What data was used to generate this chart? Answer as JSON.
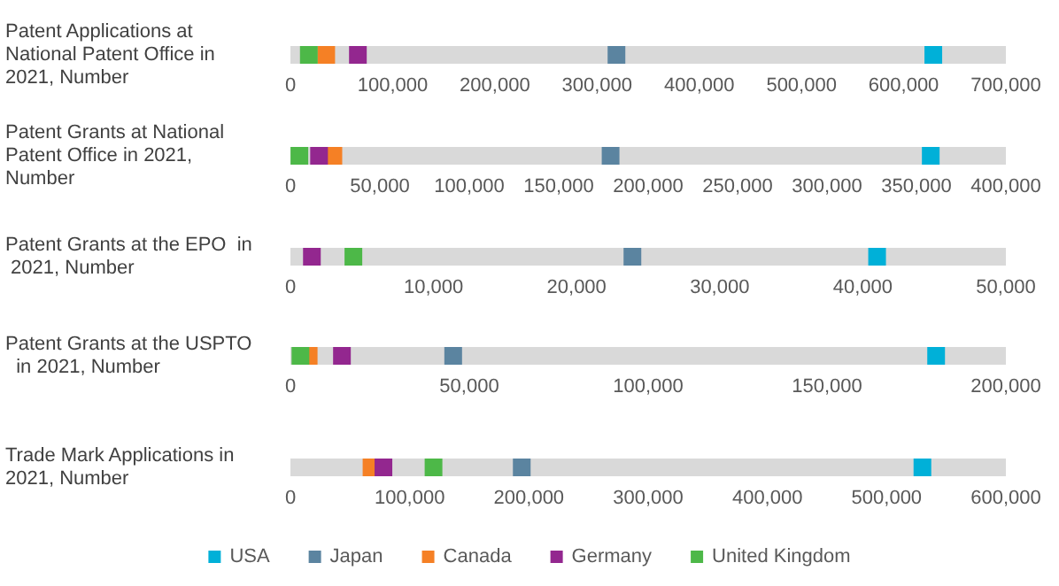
{
  "chart_data": [
    {
      "type": "scatter",
      "orientation": "horizontal",
      "categories": [
        "Patent Applications at National Patent Office in 2021, Number"
      ],
      "marker": "square",
      "grid": false,
      "legend": false,
      "xlim": [
        0,
        700000
      ],
      "xticks": [
        {
          "value": 0,
          "label": "0"
        },
        {
          "value": 100000,
          "label": "100,000"
        },
        {
          "value": 200000,
          "label": "200,000"
        },
        {
          "value": 300000,
          "label": "300,000"
        },
        {
          "value": 400000,
          "label": "400,000"
        },
        {
          "value": 500000,
          "label": "500,000"
        },
        {
          "value": 600000,
          "label": "600,000"
        },
        {
          "value": 700000,
          "label": "700,000"
        }
      ],
      "bands": [
        {
          "axis": "x",
          "from": 0,
          "to": 700000,
          "color": "#d9d9d9"
        }
      ],
      "series": [
        {
          "color": "#00b0d8",
          "values": [
            629000
          ]
        },
        {
          "color": "#5b84a0",
          "values": [
            319000
          ]
        },
        {
          "color": "#f58025",
          "values": [
            35000
          ]
        },
        {
          "color": "#93278f",
          "values": [
            66000
          ]
        },
        {
          "color": "#4db848",
          "values": [
            18000
          ]
        }
      ]
    },
    {
      "type": "scatter",
      "orientation": "horizontal",
      "categories": [
        "Patent Grants at National Patent Office in 2021, Number"
      ],
      "marker": "square",
      "grid": false,
      "legend": false,
      "xlim": [
        0,
        400000
      ],
      "xticks": [
        {
          "value": 0,
          "label": "0"
        },
        {
          "value": 50000,
          "label": "50,000"
        },
        {
          "value": 100000,
          "label": "100,000"
        },
        {
          "value": 150000,
          "label": "150,000"
        },
        {
          "value": 200000,
          "label": "200,000"
        },
        {
          "value": 250000,
          "label": "250,000"
        },
        {
          "value": 300000,
          "label": "300,000"
        },
        {
          "value": 350000,
          "label": "350,000"
        },
        {
          "value": 400000,
          "label": "400,000"
        }
      ],
      "bands": [
        {
          "axis": "x",
          "from": 0,
          "to": 400000,
          "color": "#d9d9d9"
        }
      ],
      "series": [
        {
          "color": "#00b0d8",
          "values": [
            358000
          ]
        },
        {
          "color": "#5b84a0",
          "values": [
            179000
          ]
        },
        {
          "color": "#f58025",
          "values": [
            24000
          ]
        },
        {
          "color": "#93278f",
          "values": [
            16000
          ]
        },
        {
          "color": "#4db848",
          "values": [
            5000
          ]
        }
      ]
    },
    {
      "type": "scatter",
      "orientation": "horizontal",
      "categories": [
        "Patent Grants at the EPO  in 2021, Number"
      ],
      "marker": "square",
      "grid": false,
      "legend": false,
      "xlim": [
        0,
        50000
      ],
      "xticks": [
        {
          "value": 0,
          "label": "0"
        },
        {
          "value": 10000,
          "label": "10,000"
        },
        {
          "value": 20000,
          "label": "20,000"
        },
        {
          "value": 30000,
          "label": "30,000"
        },
        {
          "value": 40000,
          "label": "40,000"
        },
        {
          "value": 50000,
          "label": "50,000"
        }
      ],
      "bands": [
        {
          "axis": "x",
          "from": 0,
          "to": 50000,
          "color": "#d9d9d9"
        }
      ],
      "series": [
        {
          "color": "#00b0d8",
          "values": [
            41000
          ]
        },
        {
          "color": "#5b84a0",
          "values": [
            23900
          ]
        },
        {
          "color": "#f58025",
          "values": [
            null
          ]
        },
        {
          "color": "#93278f",
          "values": [
            1500
          ]
        },
        {
          "color": "#4db848",
          "values": [
            4400
          ]
        }
      ]
    },
    {
      "type": "scatter",
      "orientation": "horizontal",
      "categories": [
        "Patent Grants at the USPTO  in 2021, Number"
      ],
      "marker": "square",
      "grid": false,
      "legend": false,
      "xlim": [
        0,
        200000
      ],
      "xticks": [
        {
          "value": 0,
          "label": "0"
        },
        {
          "value": 50000,
          "label": "50,000"
        },
        {
          "value": 100000,
          "label": "100,000"
        },
        {
          "value": 150000,
          "label": "150,000"
        },
        {
          "value": 200000,
          "label": "200,000"
        }
      ],
      "bands": [
        {
          "axis": "x",
          "from": 0,
          "to": 200000,
          "color": "#d9d9d9"
        }
      ],
      "series": [
        {
          "color": "#00b0d8",
          "values": [
            180500
          ]
        },
        {
          "color": "#5b84a0",
          "values": [
            45500
          ]
        },
        {
          "color": "#f58025",
          "values": [
            5100
          ]
        },
        {
          "color": "#93278f",
          "values": [
            14400
          ]
        },
        {
          "color": "#4db848",
          "values": [
            2800
          ]
        }
      ]
    },
    {
      "type": "scatter",
      "orientation": "horizontal",
      "categories": [
        "Trade Mark Applications in 2021, Number"
      ],
      "marker": "square",
      "grid": false,
      "legend": "bottom",
      "xlim": [
        0,
        600000
      ],
      "xticks": [
        {
          "value": 0,
          "label": "0"
        },
        {
          "value": 100000,
          "label": "100,000"
        },
        {
          "value": 200000,
          "label": "200,000"
        },
        {
          "value": 300000,
          "label": "300,000"
        },
        {
          "value": 400000,
          "label": "400,000"
        },
        {
          "value": 500000,
          "label": "500,000"
        },
        {
          "value": 600000,
          "label": "600,000"
        }
      ],
      "bands": [
        {
          "axis": "x",
          "from": 0,
          "to": 600000,
          "color": "#d9d9d9"
        }
      ],
      "series": [
        {
          "name": "USA",
          "color": "#00b0d8",
          "values": [
            530000
          ]
        },
        {
          "name": "Japan",
          "color": "#5b84a0",
          "values": [
            194000
          ]
        },
        {
          "name": "Canada",
          "color": "#f58025",
          "values": [
            68000
          ]
        },
        {
          "name": "Germany",
          "color": "#93278f",
          "values": [
            78000
          ]
        },
        {
          "name": "United Kingdom",
          "color": "#4db848",
          "values": [
            120000
          ]
        }
      ]
    }
  ]
}
